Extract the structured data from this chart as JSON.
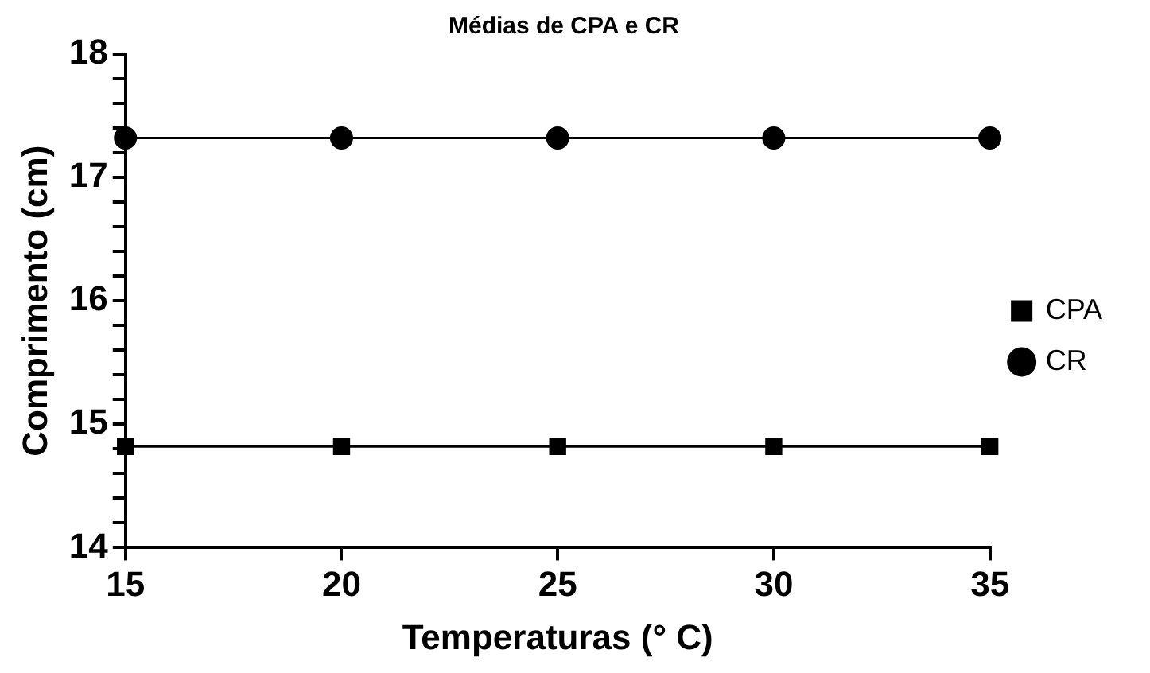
{
  "chart_data": {
    "type": "line",
    "title": "Médias de CPA e CR",
    "xlabel": "Temperaturas (° C)",
    "ylabel": "Comprimento (cm)",
    "x": [
      15,
      20,
      25,
      30,
      35
    ],
    "series": [
      {
        "name": "CPA",
        "color": "#000000",
        "marker": "square",
        "values": [
          14.82,
          14.82,
          14.82,
          14.82,
          14.82
        ]
      },
      {
        "name": "CR",
        "color": "#000000",
        "marker": "circle",
        "values": [
          17.32,
          17.32,
          17.32,
          17.32,
          17.32
        ]
      }
    ],
    "xlim": [
      15,
      35
    ],
    "xticks": [
      15,
      20,
      25,
      30,
      35
    ],
    "ylim": [
      14,
      18
    ],
    "yticks": [
      14,
      {
        "value": 14.2,
        "label": null
      },
      {
        "value": 14.4,
        "label": null
      },
      {
        "value": 14.6,
        "label": null
      },
      {
        "value": 14.8,
        "label": null
      },
      15,
      {
        "value": 15.2,
        "label": null
      },
      {
        "value": 15.4,
        "label": null
      },
      {
        "value": 15.6,
        "label": null
      },
      {
        "value": 15.8,
        "label": null
      },
      16,
      {
        "value": 16.2,
        "label": null
      },
      {
        "value": 16.4,
        "label": null
      },
      {
        "value": 16.6,
        "label": null
      },
      {
        "value": 16.8,
        "label": null
      },
      17,
      {
        "value": 17.2,
        "label": null
      },
      {
        "value": 17.4,
        "label": null
      },
      {
        "value": 17.6,
        "label": null
      },
      {
        "value": 17.8,
        "label": null
      },
      18
    ],
    "grid": false,
    "legend": "right",
    "line_style": "solid"
  }
}
